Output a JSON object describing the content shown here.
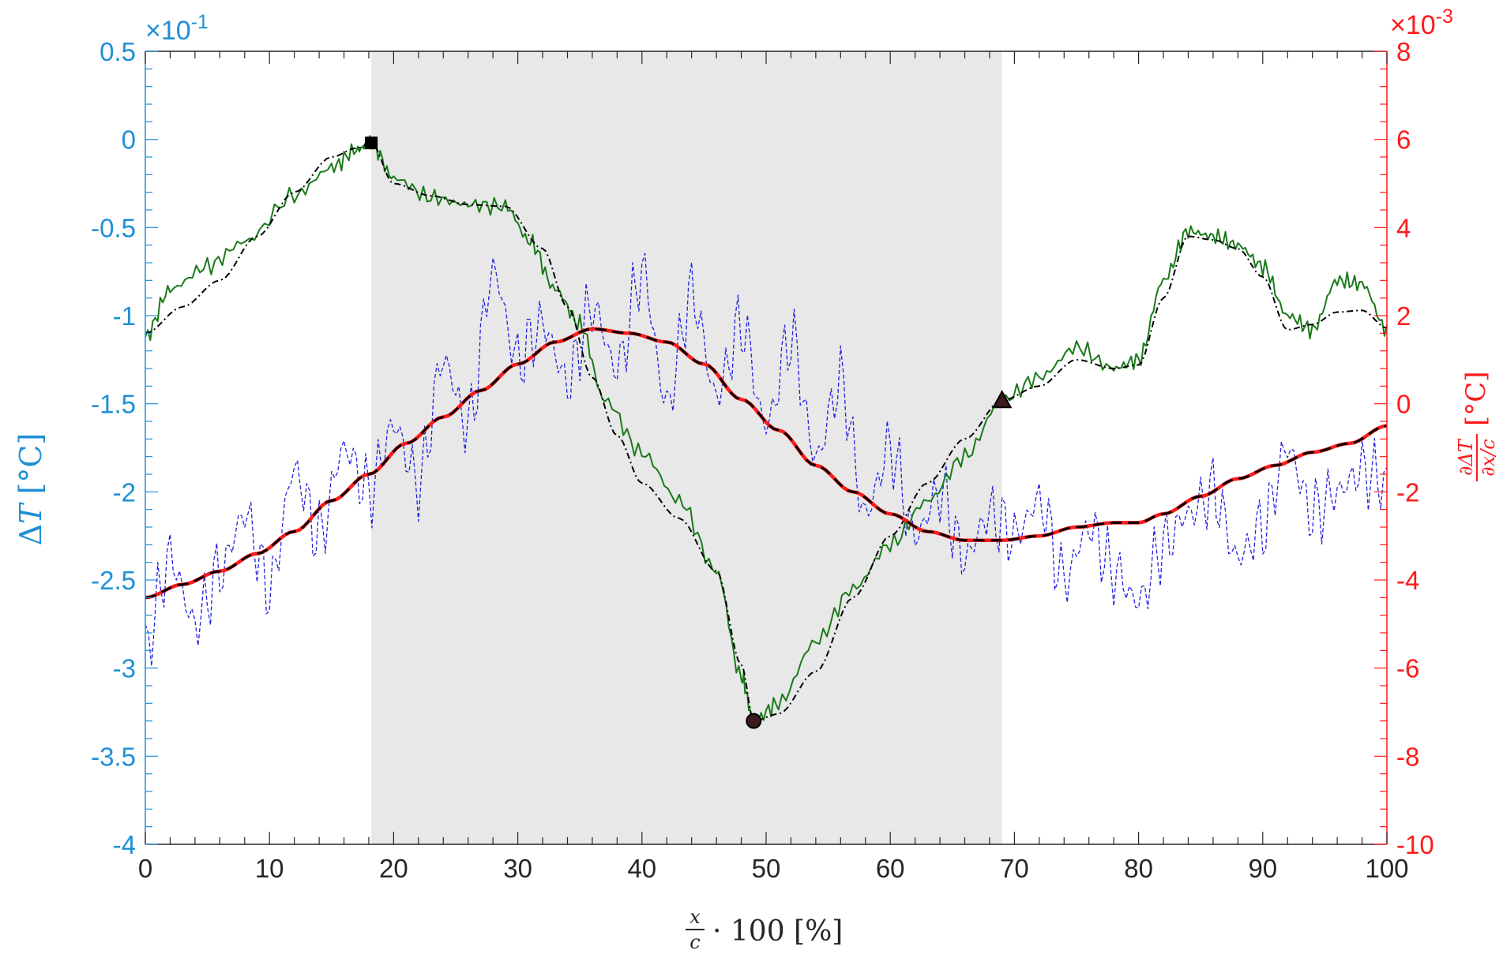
{
  "colors": {
    "left_axis": "#1f8fd6",
    "right_axis": "#ff1a1a",
    "green_series": "#1a7a1a",
    "blue_series": "#2020e0",
    "red_series": "#ff1a1a",
    "black_series": "#000000",
    "shaded_region": "#e8e8e8"
  },
  "chart_data": {
    "type": "line",
    "title": "",
    "xlabel": "x/c · 100 [%]",
    "ylabel_left": "ΔT [°C]",
    "ylabel_right": "∂ΔT/∂x/c [°C]",
    "left_exponent": "×10^-1",
    "right_exponent": "×10^-3",
    "xlim": [
      0,
      100
    ],
    "ylim_left": [
      -4,
      0.5
    ],
    "ylim_right": [
      -10,
      8
    ],
    "x_ticks": [
      "0",
      "10",
      "20",
      "30",
      "40",
      "50",
      "60",
      "70",
      "80",
      "90",
      "100"
    ],
    "y_left_ticks": [
      "0.5",
      "0",
      "-0.5",
      "-1",
      "-1.5",
      "-2",
      "-2.5",
      "-3",
      "-3.5",
      "-4"
    ],
    "y_right_ticks": [
      "8",
      "6",
      "4",
      "2",
      "0",
      "-2",
      "-4",
      "-6",
      "-8",
      "-10"
    ],
    "grid": false,
    "shaded_region_x": [
      18.2,
      69.0
    ],
    "markers": [
      {
        "shape": "square",
        "x": 18.2,
        "y": -0.02,
        "axis": "left"
      },
      {
        "shape": "circle",
        "x": 49.0,
        "y": -3.3,
        "axis": "left"
      },
      {
        "shape": "triangle",
        "x": 69.0,
        "y": -1.48,
        "axis": "left"
      }
    ],
    "series": [
      {
        "axis": "left",
        "style": "solid-noisy",
        "x": [
          0,
          2,
          5,
          8,
          12,
          15,
          17,
          18.2,
          20,
          23,
          26,
          29,
          31,
          33,
          35,
          37,
          40,
          43,
          46,
          48,
          49,
          51,
          54,
          57,
          60,
          63,
          66,
          69,
          72,
          75,
          78,
          80,
          82,
          84,
          86,
          88,
          90,
          92,
          94,
          96,
          98,
          100
        ],
        "values": [
          -1.12,
          -0.85,
          -0.72,
          -0.58,
          -0.32,
          -0.16,
          -0.06,
          -0.02,
          -0.22,
          -0.33,
          -0.37,
          -0.38,
          -0.58,
          -0.85,
          -1.05,
          -1.48,
          -1.78,
          -2.05,
          -2.45,
          -3.05,
          -3.3,
          -3.2,
          -2.85,
          -2.55,
          -2.3,
          -2.05,
          -1.8,
          -1.48,
          -1.35,
          -1.18,
          -1.3,
          -1.25,
          -0.8,
          -0.52,
          -0.55,
          -0.6,
          -0.72,
          -1.0,
          -1.08,
          -0.8,
          -0.82,
          -1.08
        ]
      },
      {
        "axis": "left",
        "style": "dash-dot",
        "x": [
          0,
          3,
          6,
          9,
          12,
          15,
          17,
          18.2,
          20,
          23,
          26,
          29,
          32,
          34,
          36,
          38,
          40,
          43,
          46,
          48,
          49,
          51,
          54,
          57,
          60,
          63,
          66,
          69,
          72,
          75,
          78,
          80,
          82,
          84,
          86,
          88,
          90,
          92,
          94,
          96,
          98,
          100
        ],
        "values": [
          -1.1,
          -0.95,
          -0.8,
          -0.55,
          -0.3,
          -0.1,
          -0.05,
          -0.02,
          -0.25,
          -0.32,
          -0.37,
          -0.38,
          -0.62,
          -0.95,
          -1.35,
          -1.68,
          -1.95,
          -2.15,
          -2.45,
          -2.98,
          -3.3,
          -3.26,
          -3.02,
          -2.6,
          -2.25,
          -1.95,
          -1.7,
          -1.48,
          -1.4,
          -1.25,
          -1.3,
          -1.28,
          -0.9,
          -0.55,
          -0.57,
          -0.62,
          -0.78,
          -1.08,
          -1.05,
          -0.98,
          -0.97,
          -1.07
        ]
      },
      {
        "axis": "right",
        "style": "dashed-noisy",
        "x": [
          0,
          2,
          4,
          6,
          8,
          10,
          12,
          14,
          16,
          18,
          20,
          22,
          24,
          26,
          28,
          30,
          32,
          34,
          36,
          38,
          40,
          42,
          44,
          46,
          48,
          50,
          52,
          54,
          56,
          58,
          60,
          62,
          64,
          66,
          68,
          70,
          72,
          74,
          76,
          78,
          80,
          82,
          84,
          86,
          88,
          90,
          92,
          94,
          96,
          98,
          100
        ],
        "values": [
          -5.5,
          -3.5,
          -5.0,
          -3.8,
          -2.5,
          -4.2,
          -1.5,
          -3.0,
          -1.0,
          -2.0,
          -0.5,
          -1.8,
          1.0,
          -0.5,
          3.0,
          1.0,
          1.8,
          0.5,
          2.2,
          0.8,
          3.0,
          0.0,
          2.5,
          0.2,
          1.8,
          -0.5,
          1.5,
          -1.2,
          0.5,
          -2.5,
          -1.0,
          -3.0,
          -2.0,
          -3.5,
          -2.5,
          -3.0,
          -2.2,
          -4.0,
          -2.8,
          -3.8,
          -4.5,
          -3.2,
          -2.5,
          -2.0,
          -3.5,
          -2.8,
          -1.0,
          -2.5,
          -2.0,
          -1.5,
          -1.8
        ]
      },
      {
        "axis": "right",
        "style": "thick-solid",
        "x": [
          0,
          3,
          6,
          9,
          12,
          15,
          18,
          21,
          24,
          27,
          30,
          33,
          36,
          39,
          42,
          45,
          48,
          51,
          54,
          57,
          60,
          63,
          66,
          69,
          72,
          75,
          78,
          80,
          82,
          85,
          88,
          91,
          94,
          97,
          100
        ],
        "values": [
          -4.4,
          -4.1,
          -3.8,
          -3.4,
          -2.9,
          -2.2,
          -1.6,
          -0.9,
          -0.3,
          0.3,
          0.9,
          1.4,
          1.7,
          1.6,
          1.4,
          0.9,
          0.1,
          -0.6,
          -1.4,
          -2.0,
          -2.5,
          -2.9,
          -3.1,
          -3.1,
          -3.0,
          -2.8,
          -2.7,
          -2.7,
          -2.5,
          -2.1,
          -1.7,
          -1.4,
          -1.1,
          -0.9,
          -0.5
        ]
      },
      {
        "axis": "right",
        "style": "thick-dashed",
        "x": [
          0,
          3,
          6,
          9,
          12,
          15,
          18,
          21,
          24,
          27,
          30,
          33,
          36,
          39,
          42,
          45,
          48,
          51,
          54,
          57,
          60,
          63,
          66,
          69,
          72,
          75,
          78,
          80,
          82,
          85,
          88,
          91,
          94,
          97,
          100
        ],
        "values": [
          -4.4,
          -4.1,
          -3.8,
          -3.4,
          -2.9,
          -2.2,
          -1.6,
          -0.9,
          -0.3,
          0.3,
          0.9,
          1.4,
          1.7,
          1.6,
          1.4,
          0.9,
          0.1,
          -0.6,
          -1.4,
          -2.0,
          -2.5,
          -2.9,
          -3.1,
          -3.1,
          -3.0,
          -2.8,
          -2.7,
          -2.7,
          -2.5,
          -2.1,
          -1.7,
          -1.4,
          -1.1,
          -0.9,
          -0.5
        ]
      }
    ]
  }
}
